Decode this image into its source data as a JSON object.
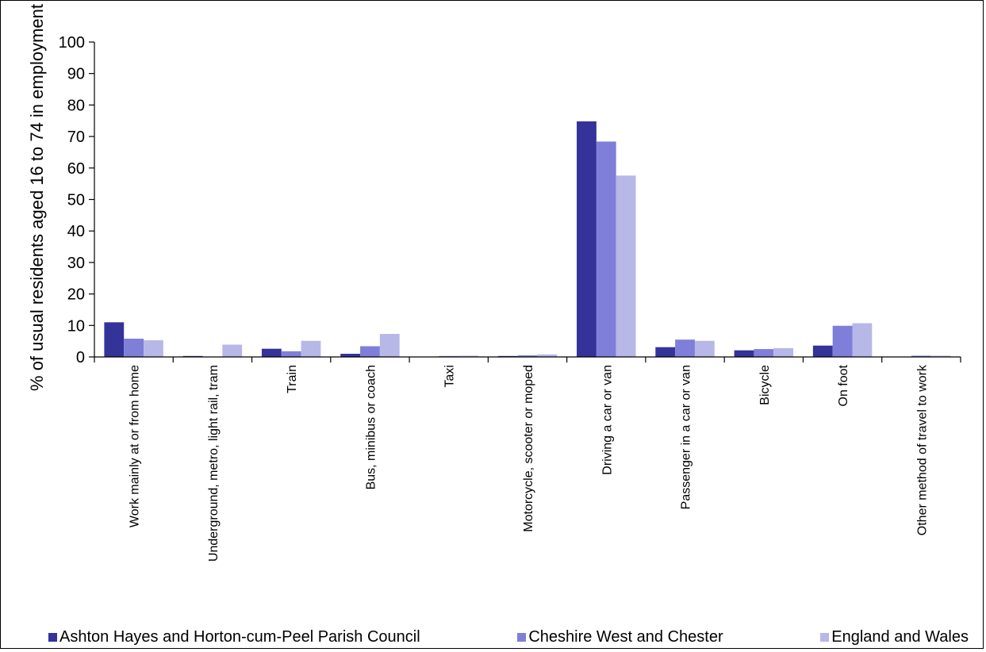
{
  "chart_data": {
    "type": "bar",
    "ylabel": "% of usual residents aged 16 to 74 in employment",
    "ylim": [
      0,
      100
    ],
    "yticks": [
      "0",
      "10",
      "20",
      "30",
      "40",
      "50",
      "60",
      "70",
      "80",
      "90",
      "100"
    ],
    "categories": [
      "Work mainly at or from home",
      "Underground, metro, light rail, tram",
      "Train",
      "Bus, minibus or coach",
      "Taxi",
      "Motorcycle, scooter or moped",
      "Driving a car or van",
      "Passenger in a car or van",
      "Bicycle",
      "On foot",
      "Other method of travel to work"
    ],
    "series": [
      {
        "name": "Ashton Hayes and Horton-cum-Peel Parish Council",
        "color": "#333399",
        "values": [
          11.0,
          0.3,
          2.6,
          1.0,
          0.0,
          0.3,
          74.8,
          3.1,
          2.1,
          3.6,
          0.0
        ]
      },
      {
        "name": "Cheshire West and Chester",
        "color": "#7f7fd9",
        "values": [
          5.8,
          0.1,
          1.8,
          3.4,
          0.3,
          0.5,
          68.4,
          5.5,
          2.5,
          9.9,
          0.4
        ]
      },
      {
        "name": "England and Wales",
        "color": "#b7b7e8",
        "values": [
          5.3,
          3.9,
          5.1,
          7.3,
          0.4,
          0.8,
          57.6,
          5.1,
          2.8,
          10.7,
          0.4
        ]
      }
    ],
    "grid": false,
    "legend_position": "bottom"
  }
}
